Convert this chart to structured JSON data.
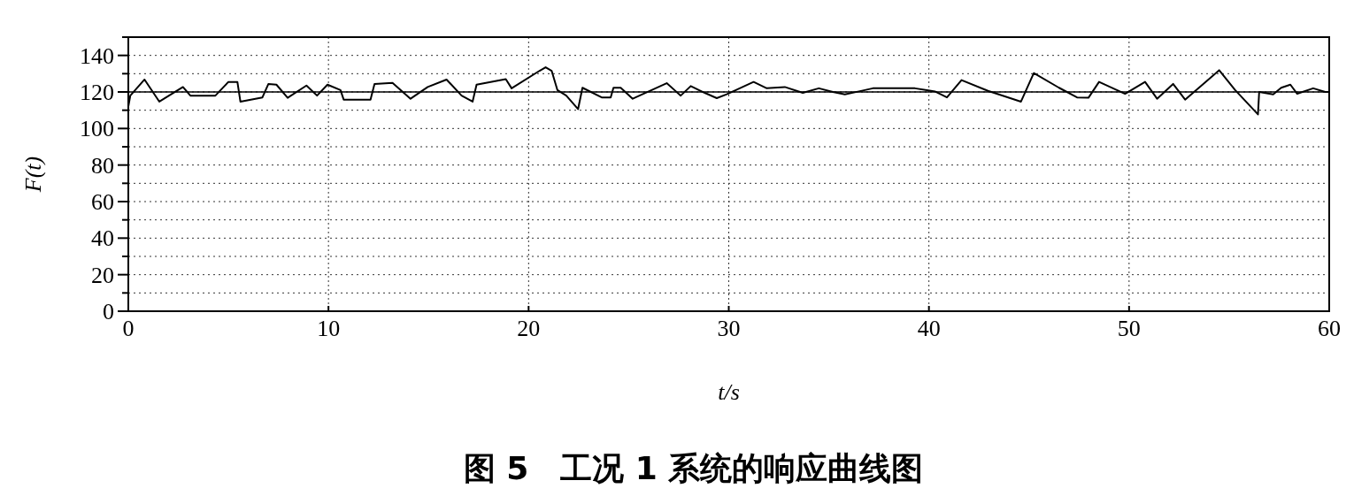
{
  "chart_data": {
    "type": "line",
    "title": "图 5　工况 1 系统的响应曲线图",
    "xlabel": "t/s",
    "ylabel": "F(t)",
    "xlim": [
      0,
      60
    ],
    "xticks": [
      0,
      10,
      20,
      30,
      40,
      50,
      60
    ],
    "ylim": [
      0,
      150
    ],
    "yticks": [
      0,
      {
        "value": 10,
        "label": null
      },
      20,
      {
        "value": 30,
        "label": null
      },
      40,
      {
        "value": 50,
        "label": null
      },
      60,
      {
        "value": 70,
        "label": null
      },
      80,
      {
        "value": 90,
        "label": null
      },
      100,
      {
        "value": 110,
        "label": null
      },
      120,
      {
        "value": 130,
        "label": null
      },
      140,
      {
        "value": 150,
        "label": null
      }
    ],
    "grid": true,
    "line_style": "solid",
    "marker": "none",
    "ref_lines": [
      {
        "axis": "y",
        "value": 120,
        "color": "#000000",
        "line_style": "solid"
      }
    ],
    "series": [
      {
        "color": "#000000",
        "x": [
          0,
          0.1,
          0.81,
          1.55,
          2.73,
          3.1,
          4.35,
          5.0,
          5.45,
          5.6,
          6.7,
          7.0,
          7.4,
          7.96,
          8.9,
          9.43,
          9.95,
          10.6,
          10.76,
          12.1,
          12.3,
          13.2,
          14.1,
          14.96,
          15.9,
          16.65,
          17.2,
          17.4,
          18.86,
          19.15,
          20.55,
          20.85,
          21.15,
          21.44,
          21.88,
          22.47,
          22.69,
          23.65,
          24.1,
          24.24,
          24.6,
          25.2,
          26.9,
          27.6,
          28.1,
          28.8,
          29.4,
          29.9,
          31.24,
          31.9,
          32.8,
          33.7,
          34.5,
          35.2,
          35.8,
          36.5,
          37.2,
          39.3,
          39.9,
          40.3,
          40.9,
          41.63,
          42.95,
          44.6,
          45.24,
          46.5,
          47.4,
          47.97,
          48.5,
          49.8,
          50.8,
          51.4,
          52.2,
          52.8,
          54.5,
          55.3,
          56.44,
          56.5,
          57.2,
          57.6,
          58.06,
          58.4,
          59.2,
          59.8,
          60
        ],
        "values": [
          112,
          118,
          126.8,
          114.7,
          122.7,
          118,
          118,
          125.5,
          125.5,
          114.7,
          117,
          124.4,
          124,
          116.8,
          123.5,
          118,
          124,
          121,
          115.8,
          115.8,
          124.4,
          125,
          116.3,
          122.7,
          126.8,
          118,
          114.7,
          124,
          127,
          122,
          131.6,
          133.5,
          131.6,
          121,
          118,
          110.6,
          122.3,
          117,
          117,
          122.3,
          122.3,
          116.3,
          124.8,
          118,
          123.2,
          119.5,
          116.6,
          118.7,
          125.5,
          122,
          122.7,
          119.5,
          122,
          120,
          118.7,
          120.3,
          122,
          122,
          121,
          120.3,
          117,
          126.5,
          120.6,
          114.7,
          130.3,
          122.3,
          117,
          116.8,
          125.5,
          119,
          125.5,
          116.3,
          124.4,
          115.8,
          131.9,
          121,
          107.7,
          120,
          118.7,
          122.3,
          124,
          119,
          122,
          120,
          120
        ]
      }
    ]
  }
}
